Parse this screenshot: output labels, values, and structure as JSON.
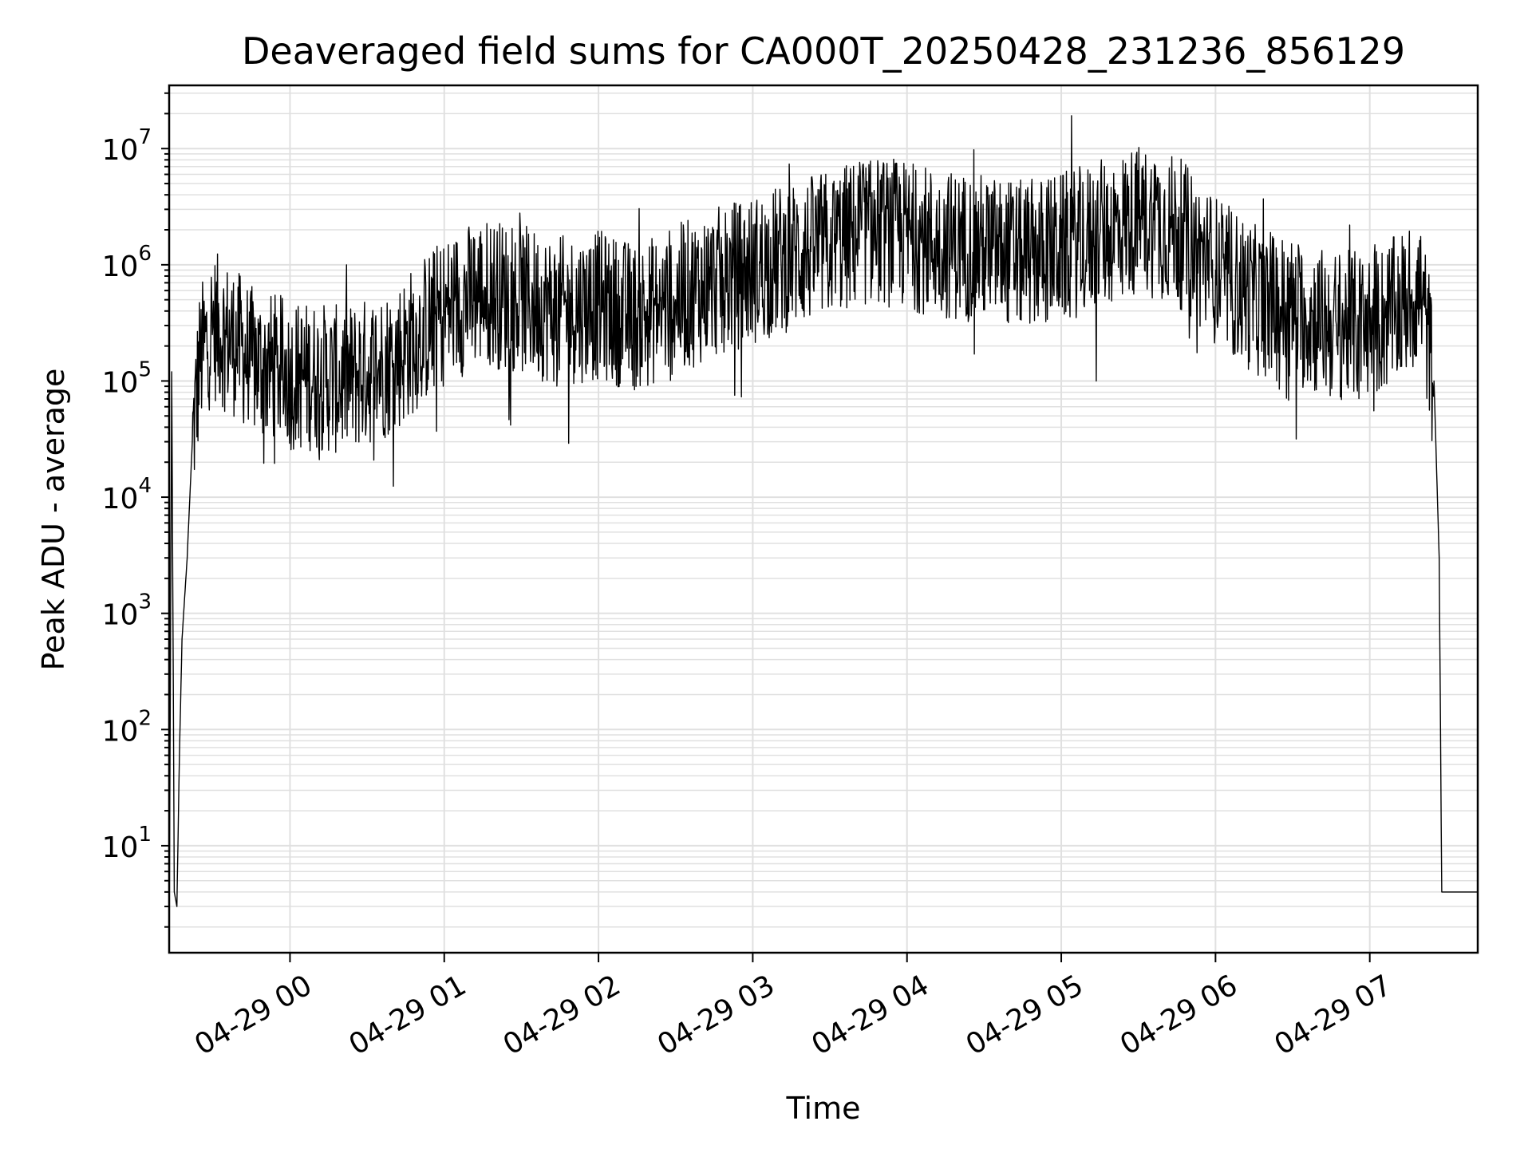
{
  "chart_data": {
    "type": "line",
    "title": "Deaveraged field sums for CA000T_20250428_231236_856129",
    "xlabel": "Time",
    "ylabel": "Peak ADU - average",
    "yscale": "log",
    "grid": true,
    "line_color": "#000000",
    "grid_color": "#e0e0e0",
    "xlim": [
      "04-28 23:13",
      "04-29 07:42"
    ],
    "ylim": [
      1.2,
      35000000
    ],
    "x_ticks": [
      {
        "label": "04-29 00",
        "value": "04-29 00:00"
      },
      {
        "label": "04-29 01",
        "value": "04-29 01:00"
      },
      {
        "label": "04-29 02",
        "value": "04-29 02:00"
      },
      {
        "label": "04-29 03",
        "value": "04-29 03:00"
      },
      {
        "label": "04-29 04",
        "value": "04-29 04:00"
      },
      {
        "label": "04-29 05",
        "value": "04-29 05:00"
      },
      {
        "label": "04-29 06",
        "value": "04-29 06:00"
      },
      {
        "label": "04-29 07",
        "value": "04-29 07:00"
      }
    ],
    "y_ticks": [
      {
        "base": "10",
        "exp": "1",
        "value": 10
      },
      {
        "base": "10",
        "exp": "2",
        "value": 100
      },
      {
        "base": "10",
        "exp": "3",
        "value": 1000
      },
      {
        "base": "10",
        "exp": "4",
        "value": 10000
      },
      {
        "base": "10",
        "exp": "5",
        "value": 100000
      },
      {
        "base": "10",
        "exp": "6",
        "value": 1000000
      },
      {
        "base": "10",
        "exp": "7",
        "value": 10000000
      }
    ],
    "series": [
      {
        "x": [
          "04-28 23:13",
          "04-28 23:14",
          "04-28 23:15",
          "04-28 23:16",
          "04-28 23:17",
          "04-28 23:18",
          "04-28 23:20",
          "04-28 23:22",
          "04-28 23:25",
          "04-28 23:30",
          "04-28 23:35",
          "04-28 23:40",
          "04-28 23:45",
          "04-28 23:50",
          "04-28 23:55",
          "04-29 00:00",
          "04-29 00:10",
          "04-29 00:20",
          "04-29 00:30",
          "04-29 00:40",
          "04-29 00:50",
          "04-29 01:00",
          "04-29 01:15",
          "04-29 01:30",
          "04-29 01:45",
          "04-29 02:00",
          "04-29 02:15",
          "04-29 02:30",
          "04-29 02:45",
          "04-29 03:00",
          "04-29 03:15",
          "04-29 03:30",
          "04-29 03:45",
          "04-29 04:00",
          "04-29 04:15",
          "04-29 04:30",
          "04-29 04:45",
          "04-29 05:00",
          "04-29 05:15",
          "04-29 05:30",
          "04-29 05:45",
          "04-29 06:00",
          "04-29 06:15",
          "04-29 06:30",
          "04-29 06:45",
          "04-29 07:00",
          "04-29 07:10",
          "04-29 07:20",
          "04-29 07:25",
          "04-29 07:27",
          "04-29 07:28",
          "04-29 07:30",
          "04-29 07:35",
          "04-29 07:42"
        ],
        "y": [
          1.2,
          120000,
          4,
          3,
          60,
          600,
          3000,
          30000,
          150000,
          300000,
          250000,
          200000,
          150000,
          130000,
          130000,
          110000,
          110000,
          100000,
          120000,
          150000,
          250000,
          400000,
          600000,
          500000,
          400000,
          450000,
          350000,
          500000,
          700000,
          900000,
          1200000,
          1500000,
          2000000,
          1800000,
          1500000,
          1400000,
          1200000,
          1400000,
          1800000,
          2500000,
          2000000,
          900000,
          500000,
          400000,
          300000,
          300000,
          400000,
          600000,
          100000,
          3000,
          4,
          4,
          4,
          4
        ]
      }
    ]
  }
}
